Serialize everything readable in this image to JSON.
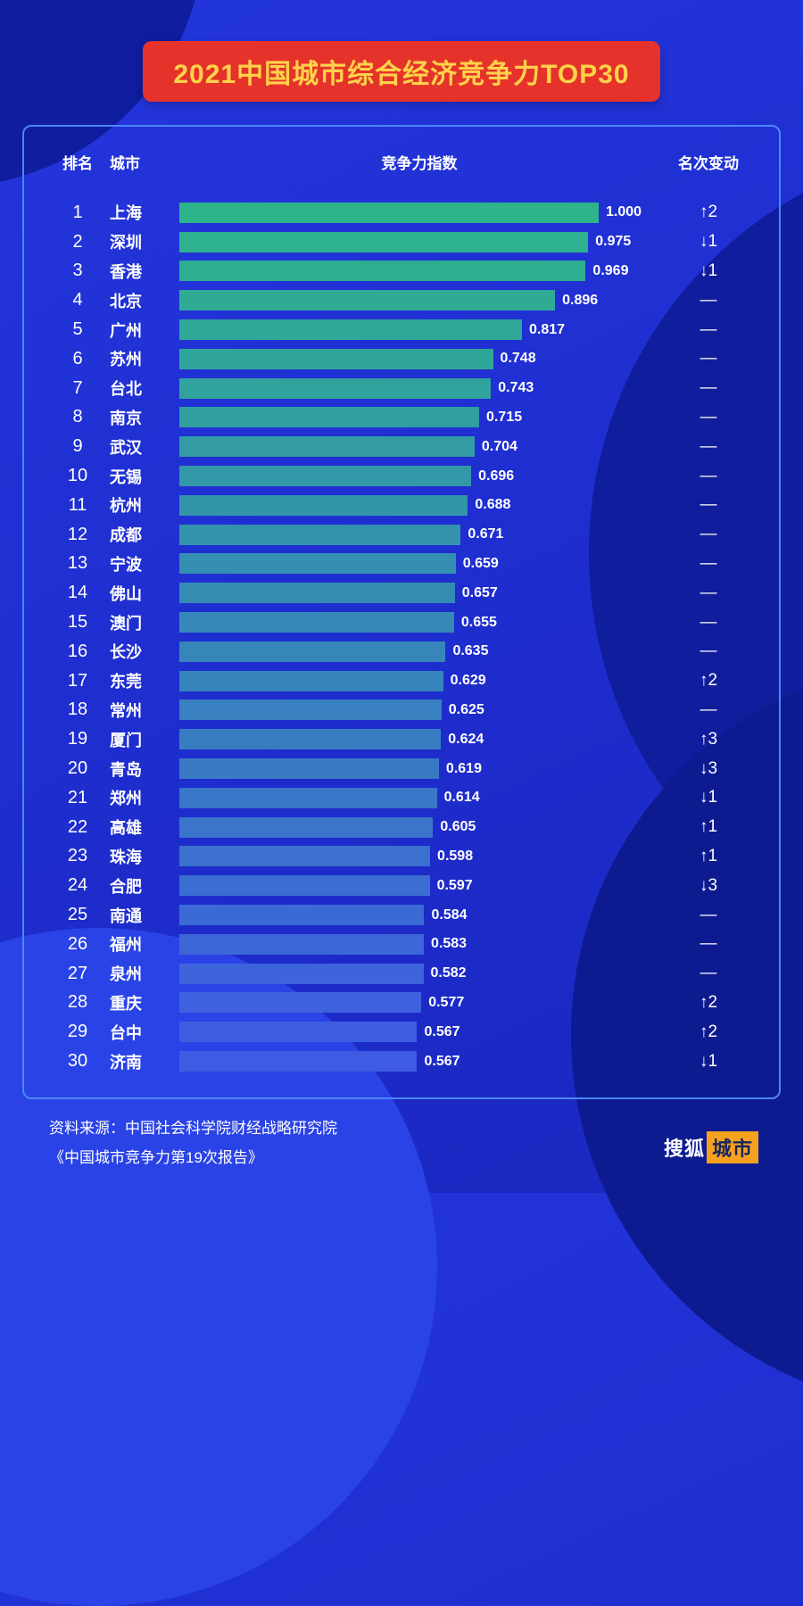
{
  "title": "2021中国城市综合经济竞争力TOP30",
  "table": {
    "headers": {
      "rank": "排名",
      "city": "城市",
      "index": "竞争力指数",
      "change": "名次变动"
    }
  },
  "chart_data": {
    "type": "bar",
    "orientation": "horizontal",
    "title": "2021中国城市综合经济竞争力TOP30",
    "xlabel": "竞争力指数",
    "xlim": [
      0,
      1.0
    ],
    "grid": false,
    "ranks": [
      1,
      2,
      3,
      4,
      5,
      6,
      7,
      8,
      9,
      10,
      11,
      12,
      13,
      14,
      15,
      16,
      17,
      18,
      19,
      20,
      21,
      22,
      23,
      24,
      25,
      26,
      27,
      28,
      29,
      30
    ],
    "categories": [
      "上海",
      "深圳",
      "香港",
      "北京",
      "广州",
      "苏州",
      "台北",
      "南京",
      "武汉",
      "无锡",
      "杭州",
      "成都",
      "宁波",
      "佛山",
      "澳门",
      "长沙",
      "东莞",
      "常州",
      "厦门",
      "青岛",
      "郑州",
      "高雄",
      "珠海",
      "合肥",
      "南通",
      "福州",
      "泉州",
      "重庆",
      "台中",
      "济南"
    ],
    "values": [
      1.0,
      0.975,
      0.969,
      0.896,
      0.817,
      0.748,
      0.743,
      0.715,
      0.704,
      0.696,
      0.688,
      0.671,
      0.659,
      0.657,
      0.655,
      0.635,
      0.629,
      0.625,
      0.624,
      0.619,
      0.614,
      0.605,
      0.598,
      0.597,
      0.584,
      0.583,
      0.582,
      0.577,
      0.567,
      0.567
    ],
    "value_labels": [
      "1.000",
      "0.975",
      "0.969",
      "0.896",
      "0.817",
      "0.748",
      "0.743",
      "0.715",
      "0.704",
      "0.696",
      "0.688",
      "0.671",
      "0.659",
      "0.657",
      "0.655",
      "0.635",
      "0.629",
      "0.625",
      "0.624",
      "0.619",
      "0.614",
      "0.605",
      "0.598",
      "0.597",
      "0.584",
      "0.583",
      "0.582",
      "0.577",
      "0.567",
      "0.567"
    ],
    "changes": [
      "↑2",
      "↓1",
      "↓1",
      "—",
      "—",
      "—",
      "—",
      "—",
      "—",
      "—",
      "—",
      "—",
      "—",
      "—",
      "—",
      "—",
      "↑2",
      "—",
      "↑3",
      "↓3",
      "↓1",
      "↑1",
      "↑1",
      "↓3",
      "—",
      "—",
      "—",
      "↑2",
      "↑2",
      "↓1"
    ],
    "bar_color_start": "#2db48b",
    "bar_color_end": "#3f5be4"
  },
  "footer": {
    "source_line1": "资料来源：中国社会科学院财经战略研究院",
    "source_line2": "《中国城市竞争力第19次报告》"
  },
  "logo": {
    "part1": "搜狐",
    "part2": "城市"
  },
  "colors": {
    "background": "#1f2ed2",
    "banner": "#e5322a",
    "banner_text": "#ffd24a",
    "panel_border": "#4b86f7",
    "text": "#ffffff",
    "logo_box": "#f6a21f"
  }
}
